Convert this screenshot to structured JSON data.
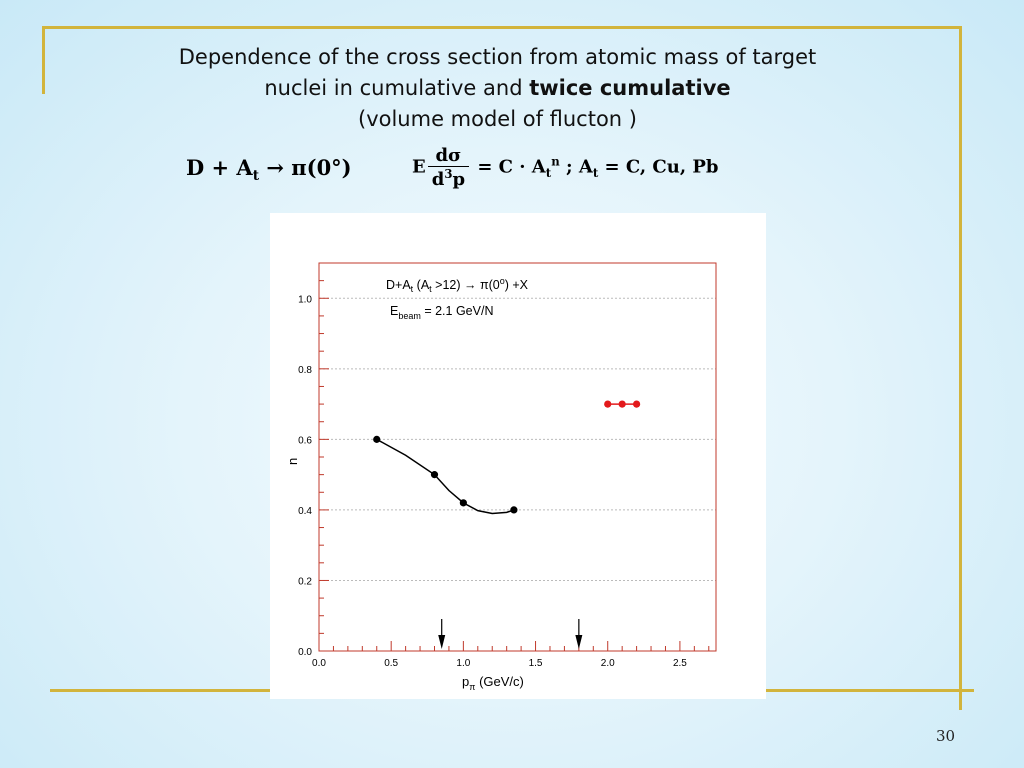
{
  "slide": {
    "title_line1": "Dependence of the cross section from atomic mass of target",
    "title_line2_plain": "nuclei  in cumulative and ",
    "title_line2_bold": "twice cumulative",
    "title_line3": "(volume model of flucton )",
    "page_number": "30"
  },
  "formulas": {
    "reaction_d": "D",
    "reaction_plus": " + A",
    "reaction_sub": "t",
    "reaction_rest": " → π(0°)",
    "xsec_e": "E",
    "xsec_num": "dσ",
    "xsec_den_d": "d",
    "xsec_den_sup": "3",
    "xsec_den_p": "p",
    "xsec_eq": " = C · A",
    "xsec_sub": "t",
    "xsec_sup": "n",
    "xsec_tail": " ; A",
    "xsec_tail_sub": "t",
    "xsec_tail_rest": " = C, Cu, Pb"
  },
  "colors": {
    "frame": "#d2b43c",
    "axis_red": "#c0392b",
    "series_black": "#000000",
    "series_red": "#e31a1c"
  },
  "chart_data": {
    "type": "scatter",
    "xlabel_main": "p",
    "xlabel_sub": "π",
    "xlabel_rest": " (GeV/c)",
    "ylabel": "n",
    "xlim": [
      0.0,
      2.75
    ],
    "ylim": [
      0.0,
      1.1
    ],
    "xticks": [
      "0.0",
      "0.5",
      "1.0",
      "1.5",
      "2.0",
      "2.5"
    ],
    "yticks": [
      "0.0",
      "0.2",
      "0.4",
      "0.6",
      "0.8",
      "1.0"
    ],
    "grid": "horizontal dashed",
    "annotation_line1": "D+A",
    "annotation_line1_sub": "t",
    "annotation_line1_mid": " (A",
    "annotation_line1_mid_sub": "t",
    "annotation_line1_rest": " >12) → π(0",
    "annotation_line1_sup": "o",
    "annotation_line1_end": ") +X",
    "annotation_line2": "E",
    "annotation_line2_sub": "beam",
    "annotation_line2_rest": " = 2.1 GeV/N",
    "series": [
      {
        "points": [
          [
            0.4,
            0.6
          ],
          [
            0.8,
            0.5
          ],
          [
            1.0,
            0.42
          ],
          [
            1.35,
            0.4
          ]
        ],
        "curve": [
          [
            0.4,
            0.6
          ],
          [
            0.6,
            0.555
          ],
          [
            0.8,
            0.5
          ],
          [
            0.9,
            0.455
          ],
          [
            1.0,
            0.42
          ],
          [
            1.1,
            0.398
          ],
          [
            1.2,
            0.39
          ],
          [
            1.3,
            0.393
          ],
          [
            1.35,
            0.4
          ]
        ],
        "color": "#000000"
      },
      {
        "points": [
          [
            2.0,
            0.7
          ],
          [
            2.1,
            0.7
          ],
          [
            2.2,
            0.7
          ]
        ],
        "color": "#e31a1c"
      }
    ],
    "arrows_x": [
      0.85,
      1.8
    ]
  }
}
